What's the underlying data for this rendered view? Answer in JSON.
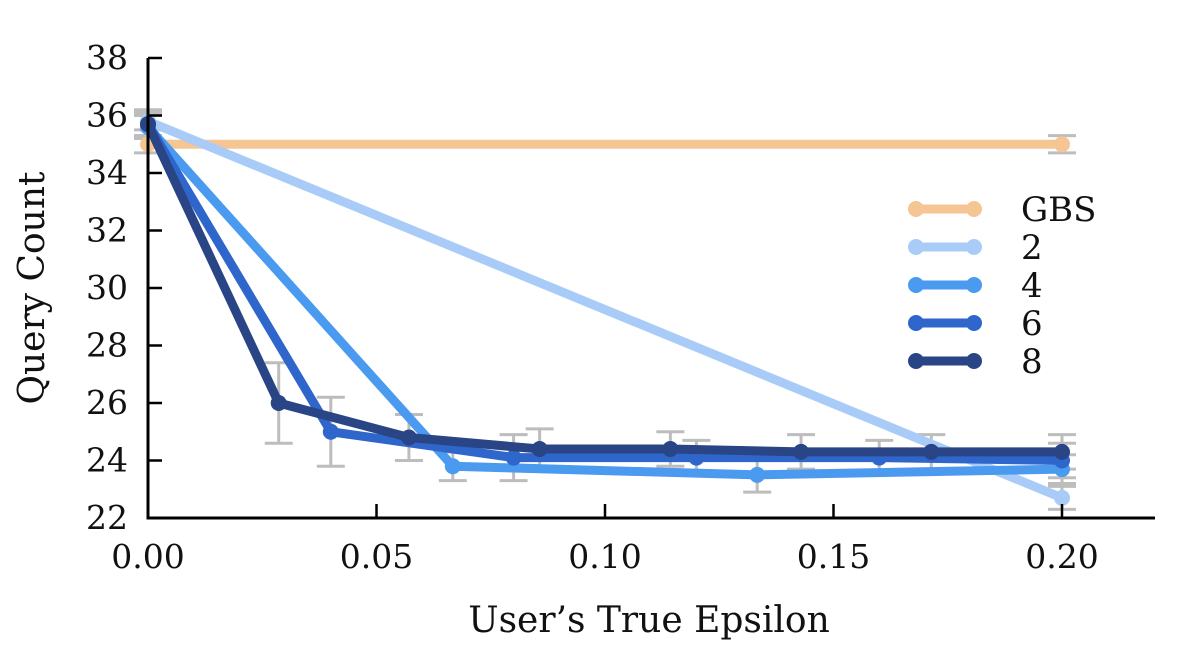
{
  "chart_data": {
    "type": "line",
    "xlabel": "User’s True Epsilon",
    "ylabel": "Query Count",
    "xlim": [
      0.0,
      0.22
    ],
    "ylim": [
      22,
      38
    ],
    "xticks": [
      0.0,
      0.05,
      0.1,
      0.15,
      0.2
    ],
    "xtick_labels": [
      "0.00",
      "0.05",
      "0.10",
      "0.15",
      "0.20"
    ],
    "yticks": [
      22,
      24,
      26,
      28,
      30,
      32,
      34,
      36,
      38
    ],
    "ytick_labels": [
      "22",
      "24",
      "26",
      "28",
      "30",
      "32",
      "34",
      "36",
      "38"
    ],
    "grid": false,
    "legend_position": "right",
    "series": [
      {
        "name": "GBS",
        "color": "#f5c593",
        "x": [
          0.0,
          0.2
        ],
        "y": [
          35.0,
          35.0
        ],
        "err": [
          0.3,
          0.3
        ]
      },
      {
        "name": "2",
        "color": "#a8ccf7",
        "x": [
          0.0,
          0.2
        ],
        "y": [
          35.8,
          22.7
        ],
        "err": [
          0.3,
          0.4
        ]
      },
      {
        "name": "4",
        "color": "#4a9af0",
        "x": [
          0.0,
          0.0667,
          0.1333,
          0.2
        ],
        "y": [
          35.6,
          23.8,
          23.5,
          23.7
        ],
        "err": [
          0.4,
          0.5,
          0.6,
          0.5
        ]
      },
      {
        "name": "6",
        "color": "#2f66cc",
        "x": [
          0.0,
          0.04,
          0.08,
          0.12,
          0.16,
          0.2
        ],
        "y": [
          35.7,
          25.0,
          24.1,
          24.1,
          24.1,
          24.0
        ],
        "err": [
          0.4,
          1.2,
          0.8,
          0.6,
          0.6,
          0.6
        ]
      },
      {
        "name": "8",
        "color": "#2a4585",
        "x": [
          0.0,
          0.0286,
          0.0571,
          0.0857,
          0.1143,
          0.1429,
          0.1714,
          0.2
        ],
        "y": [
          35.7,
          26.0,
          24.8,
          24.4,
          24.4,
          24.3,
          24.3,
          24.3
        ],
        "err": [
          0.5,
          1.4,
          0.8,
          0.7,
          0.6,
          0.6,
          0.6,
          0.6
        ]
      }
    ]
  }
}
